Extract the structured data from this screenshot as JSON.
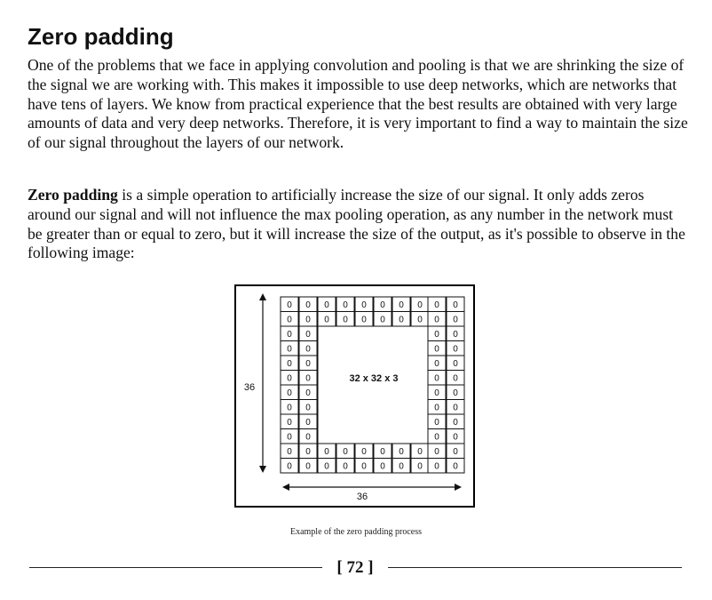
{
  "section": {
    "heading": "Zero padding",
    "paragraph1": "One of the problems that we face in applying convolution and pooling is that we are shrinking the size of the signal we are working with. This makes it impossible to use deep networks, which are networks that have tens of layers. We know from practical experience that the best results are obtained with very large amounts of data and very deep networks. Therefore, it is very important to find a way to maintain the size of our signal throughout the layers of our network.",
    "paragraph2_term": "Zero padding",
    "paragraph2_rest": " is a simple operation to artificially increase the size of our signal. It only adds zeros around our signal and will not influence the max pooling operation, as any number in the network must be greater than or equal to zero, but it will increase the size of the output, as it's possible to observe in the following image:"
  },
  "figure": {
    "cell_value": "0",
    "center_label": "32 x 32 x 3",
    "height_label": "36",
    "width_label": "36",
    "caption": "Example of the zero padding process"
  },
  "footer": {
    "page_number": "[ 72 ]"
  }
}
